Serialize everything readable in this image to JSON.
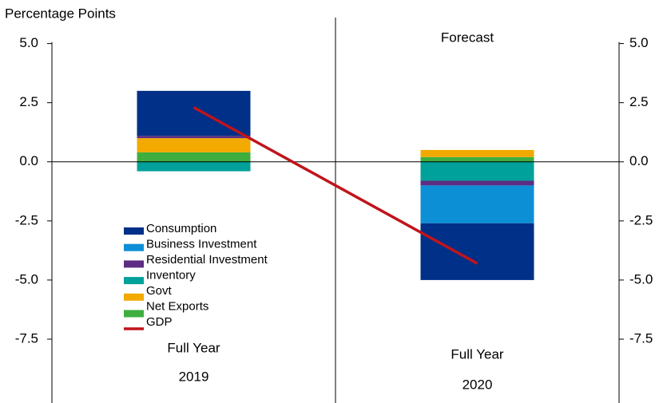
{
  "chart_data": {
    "type": "stacked-bar-line",
    "y_axis_label": "Percentage Points",
    "annotation": "Forecast",
    "categories": [
      [
        "Full Year",
        "2019"
      ],
      [
        "Full Year",
        "2020"
      ]
    ],
    "series": [
      {
        "name": "Consumption",
        "color": "#003087",
        "values": [
          1.9,
          -2.4
        ]
      },
      {
        "name": "Business Investment",
        "color": "#0d8fd6",
        "values": [
          0,
          -1.6
        ]
      },
      {
        "name": "Residential Investment",
        "color": "#5c2d82",
        "values": [
          0.1,
          -0.2
        ]
      },
      {
        "name": "Inventory",
        "color": "#00a19a",
        "values": [
          -0.4,
          -0.8
        ]
      },
      {
        "name": "Govt",
        "color": "#f2a900",
        "values": [
          0.6,
          0.3
        ]
      },
      {
        "name": "Net Exports",
        "color": "#3fae3f",
        "values": [
          0.4,
          0.2
        ]
      },
      {
        "name": "GDP",
        "color": "#c0141c",
        "type": "line",
        "values": [
          2.3,
          -4.3
        ]
      }
    ],
    "ylim": [
      -10.2,
      6.1
    ],
    "yticks": [
      {
        "value": 5,
        "label": "5.0"
      },
      {
        "value": 2.5,
        "label": "2.5"
      },
      {
        "value": 0,
        "label": "0.0"
      },
      {
        "value": -2.5,
        "label": "-2.5"
      },
      {
        "value": -5,
        "label": "-5.0"
      },
      {
        "value": -7.5,
        "label": "-7.5"
      }
    ],
    "secondary_axis_mirrors": true
  }
}
